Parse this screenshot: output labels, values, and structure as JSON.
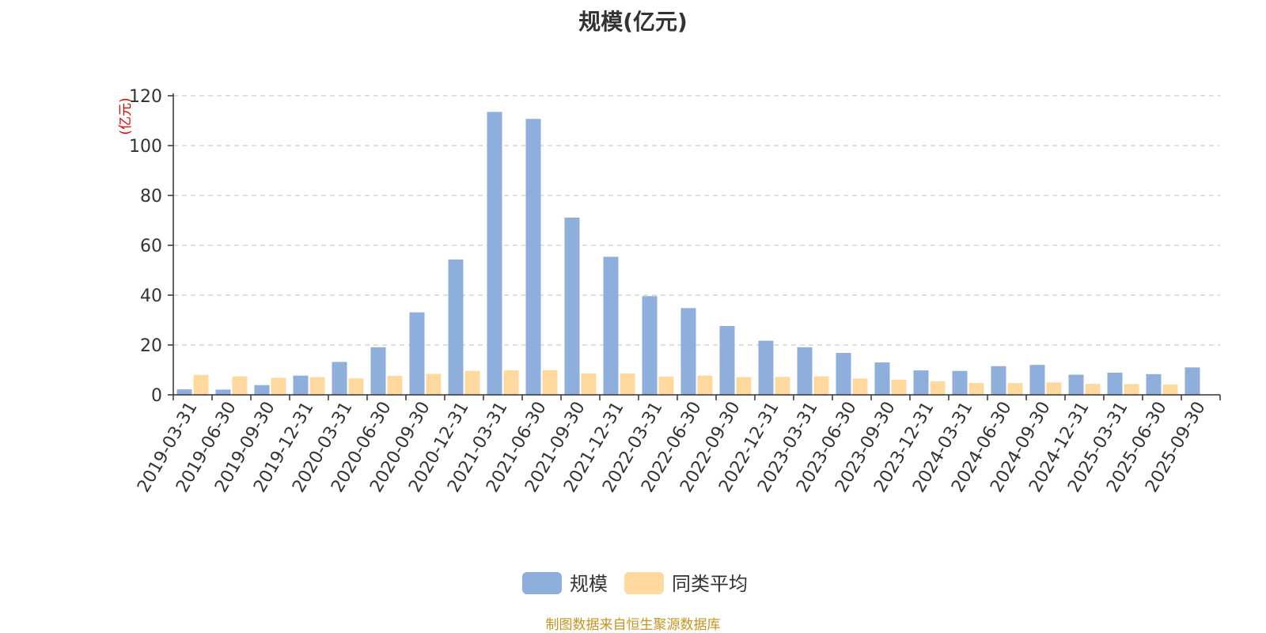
{
  "chart_data": {
    "type": "bar",
    "title": "规模(亿元)",
    "ylabel": "(亿元)",
    "xlabel": "",
    "ylim": [
      0,
      120
    ],
    "yticks": [
      0,
      20,
      40,
      60,
      80,
      100,
      120
    ],
    "grid": true,
    "legend_position": "bottom",
    "categories": [
      "2019-03-31",
      "2019-06-30",
      "2019-09-30",
      "2019-12-31",
      "2020-03-31",
      "2020-06-30",
      "2020-09-30",
      "2020-12-31",
      "2021-03-31",
      "2021-06-30",
      "2021-09-30",
      "2021-12-31",
      "2022-03-31",
      "2022-06-30",
      "2022-09-30",
      "2022-12-31",
      "2023-03-31",
      "2023-06-30",
      "2023-09-30",
      "2023-12-31",
      "2024-03-31",
      "2024-06-30",
      "2024-09-30",
      "2024-12-31",
      "2025-03-31",
      "2025-06-30",
      "2025-09-30"
    ],
    "series": [
      {
        "name": "规模",
        "color": "#8eaedc",
        "values": [
          2.2,
          2.1,
          3.9,
          7.7,
          13.2,
          19.1,
          33.1,
          54.3,
          113.5,
          110.7,
          71.1,
          55.4,
          39.6,
          34.8,
          27.6,
          21.7,
          19.1,
          16.8,
          13.0,
          9.8,
          9.6,
          11.5,
          12.0,
          8.1,
          8.9,
          8.3,
          11.0
        ]
      },
      {
        "name": "同类平均",
        "color": "#fed89c",
        "values": [
          8.0,
          7.4,
          6.8,
          7.1,
          6.6,
          7.6,
          8.4,
          9.6,
          9.8,
          9.9,
          8.6,
          8.6,
          7.3,
          7.7,
          7.1,
          7.2,
          7.4,
          6.5,
          6.1,
          5.4,
          4.8,
          4.7,
          5.0,
          4.4,
          4.3,
          4.1,
          0
        ]
      }
    ]
  },
  "footer": {
    "source": "制图数据来自恒生聚源数据库"
  }
}
